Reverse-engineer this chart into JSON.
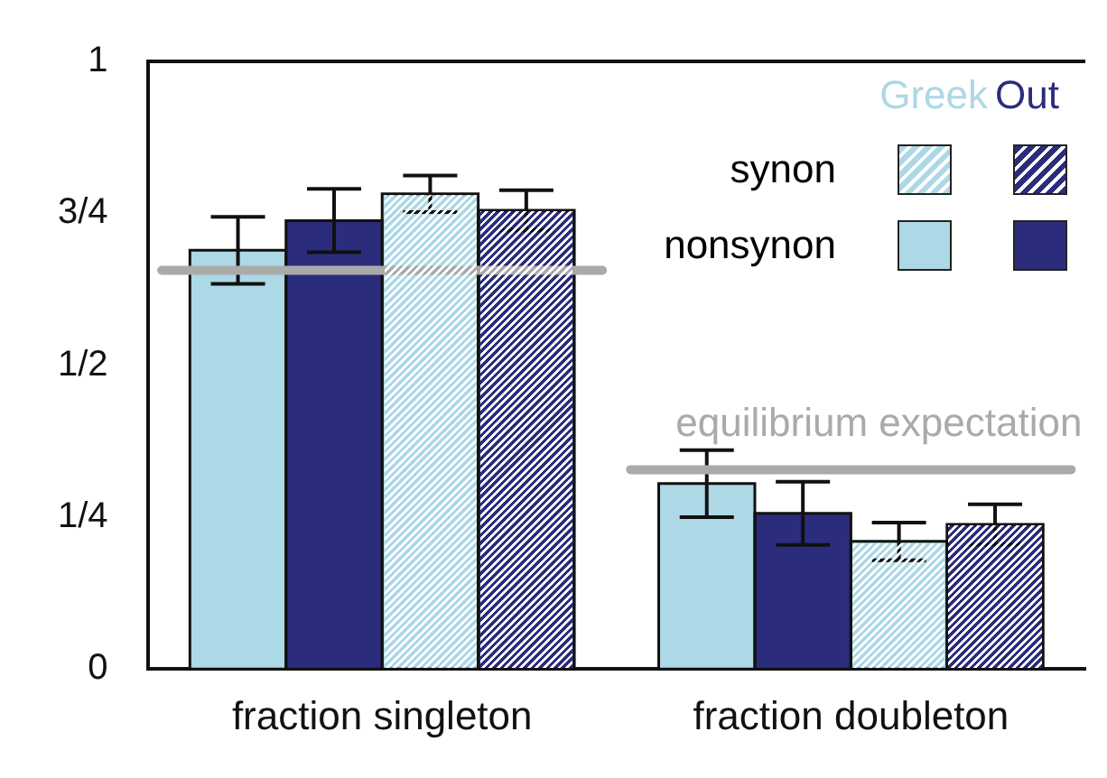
{
  "chart_data": {
    "type": "bar",
    "categories": [
      "fraction singleton",
      "fraction doubleton"
    ],
    "series": [
      {
        "name": "nonsynon",
        "color": "#add8e6",
        "values": [
          0.689,
          0.305
        ],
        "errors": [
          0.055,
          0.055
        ]
      },
      {
        "color": "#2b2d7c",
        "values": [
          0.738,
          0.256
        ],
        "errors": [
          0.052,
          0.052
        ]
      },
      {
        "name": "synon",
        "color": "#add8e6",
        "values": [
          0.782,
          0.21
        ],
        "errors": [
          0.03,
          0.031
        ]
      },
      {
        "color": "#2b2d7c",
        "values": [
          0.755,
          0.238
        ],
        "errors": [
          0.033,
          0.033
        ]
      }
    ],
    "ylim": [
      0,
      1
    ],
    "yticks": [
      {
        "value": 0,
        "label": "0"
      },
      {
        "value": 0.25,
        "label": "1/4"
      },
      {
        "value": 0.5,
        "label": "1/2"
      },
      {
        "value": 0.75,
        "label": "3/4"
      },
      {
        "value": 1,
        "label": "1"
      }
    ],
    "ref_lines": [
      {
        "axis": "y",
        "value": 0.656,
        "label": null,
        "color": "#aaaaaa"
      },
      {
        "axis": "y",
        "value": 0.328,
        "label": "equilibrium expectation",
        "color": "#aaaaaa"
      }
    ],
    "annotations": [
      "Greek",
      "Out"
    ],
    "legend": "top right",
    "grid": false
  }
}
